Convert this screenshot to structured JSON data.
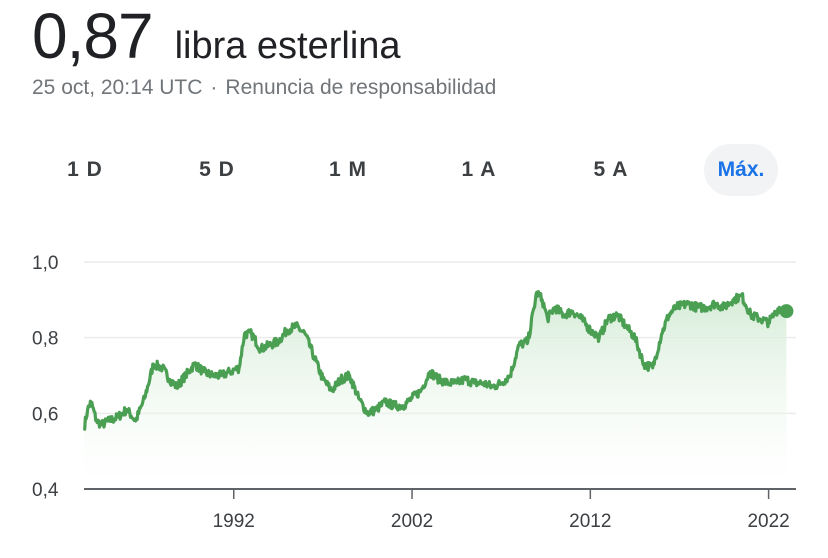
{
  "header": {
    "value": "0,87",
    "currency": "libra esterlina",
    "timestamp": "25 oct, 20:14 UTC",
    "separator": "·",
    "disclaimer": "Renuncia de responsabilidad"
  },
  "range_tabs": [
    {
      "label": "1 D",
      "active": false
    },
    {
      "label": "5 D",
      "active": false
    },
    {
      "label": "1 M",
      "active": false
    },
    {
      "label": "1 A",
      "active": false
    },
    {
      "label": "5 A",
      "active": false
    },
    {
      "label": "Máx.",
      "active": true
    }
  ],
  "colors": {
    "line": "#4a9f53",
    "area_top": "#cfe9d1",
    "grid": "#ececec",
    "axis": "#5f6368",
    "active_tab": "#1a73e8"
  },
  "chart_data": {
    "type": "area",
    "xlabel": "",
    "ylabel": "",
    "x_ticks": [
      {
        "label": "1992",
        "x": 1992
      },
      {
        "label": "2002",
        "x": 2002
      },
      {
        "label": "2012",
        "x": 2012
      },
      {
        "label": "2022",
        "x": 2022
      }
    ],
    "y_ticks": [
      {
        "label": "1,0",
        "y": 1.0
      },
      {
        "label": "0,8",
        "y": 0.8
      },
      {
        "label": "0,6",
        "y": 0.6
      },
      {
        "label": "0,4",
        "y": 0.4
      }
    ],
    "xlim": [
      1983.6,
      2023.2
    ],
    "ylim": [
      0.4,
      1.0
    ],
    "grid": true,
    "series": [
      {
        "x": [
          1983.6,
          1983.8,
          1984.0,
          1984.3,
          1984.6,
          1985.0,
          1985.5,
          1986.0,
          1986.5,
          1987.0,
          1987.5,
          1988.0,
          1988.4,
          1988.8,
          1989.3,
          1989.8,
          1990.3,
          1990.8,
          1991.3,
          1991.8,
          1992.3,
          1992.6,
          1993.0,
          1993.5,
          1994.0,
          1994.5,
          1995.0,
          1995.5,
          1996.0,
          1996.5,
          1997.0,
          1997.5,
          1998.0,
          1998.5,
          1999.0,
          1999.5,
          2000.0,
          2000.5,
          2001.0,
          2001.5,
          2002.0,
          2002.5,
          2003.0,
          2003.5,
          2004.0,
          2004.5,
          2005.0,
          2005.5,
          2006.0,
          2006.5,
          2007.0,
          2007.5,
          2008.0,
          2008.5,
          2009.0,
          2009.3,
          2009.6,
          2010.0,
          2010.5,
          2011.0,
          2011.5,
          2012.0,
          2012.5,
          2013.0,
          2013.5,
          2014.0,
          2014.5,
          2015.0,
          2015.5,
          2016.0,
          2016.4,
          2016.8,
          2017.5,
          2018.0,
          2018.5,
          2019.0,
          2019.5,
          2020.0,
          2020.5,
          2021.0,
          2021.5,
          2022.0,
          2022.3,
          2022.6,
          2022.8,
          2023.0
        ],
        "y": [
          0.56,
          0.61,
          0.63,
          0.58,
          0.57,
          0.58,
          0.59,
          0.61,
          0.58,
          0.64,
          0.73,
          0.72,
          0.69,
          0.67,
          0.7,
          0.73,
          0.71,
          0.7,
          0.7,
          0.71,
          0.72,
          0.81,
          0.81,
          0.77,
          0.78,
          0.79,
          0.82,
          0.83,
          0.81,
          0.75,
          0.69,
          0.66,
          0.69,
          0.7,
          0.64,
          0.6,
          0.61,
          0.63,
          0.62,
          0.62,
          0.64,
          0.66,
          0.71,
          0.69,
          0.68,
          0.68,
          0.69,
          0.68,
          0.68,
          0.67,
          0.68,
          0.7,
          0.78,
          0.79,
          0.92,
          0.9,
          0.85,
          0.88,
          0.86,
          0.87,
          0.85,
          0.82,
          0.8,
          0.85,
          0.86,
          0.83,
          0.8,
          0.73,
          0.72,
          0.81,
          0.86,
          0.88,
          0.89,
          0.88,
          0.88,
          0.89,
          0.88,
          0.9,
          0.91,
          0.86,
          0.85,
          0.84,
          0.86,
          0.88,
          0.87,
          0.87
        ]
      }
    ]
  }
}
